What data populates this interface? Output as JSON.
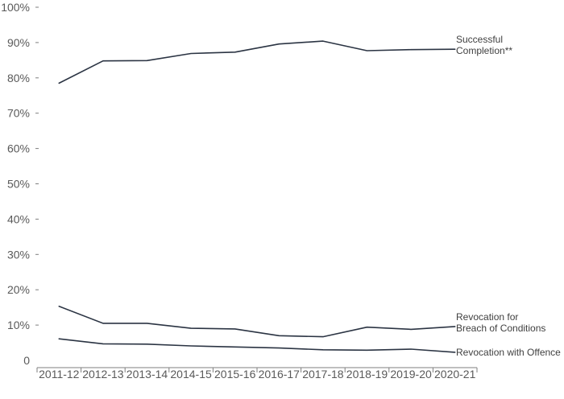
{
  "chart_data": {
    "type": "line",
    "title": "",
    "xlabel": "",
    "ylabel": "",
    "categories": [
      "2011-12",
      "2012-13",
      "2013-14",
      "2014-15",
      "2015-16",
      "2016-17",
      "2017-18",
      "2018-19",
      "2019-20",
      "2020-21"
    ],
    "ylim": [
      0,
      100
    ],
    "yticks": [
      {
        "value": 0,
        "label": "0"
      },
      {
        "value": 10,
        "label": "10%"
      },
      {
        "value": 20,
        "label": "20%"
      },
      {
        "value": 30,
        "label": "30%"
      },
      {
        "value": 40,
        "label": "40%"
      },
      {
        "value": 50,
        "label": "50%"
      },
      {
        "value": 60,
        "label": "60%"
      },
      {
        "value": 70,
        "label": "70%"
      },
      {
        "value": 80,
        "label": "80%"
      },
      {
        "value": 90,
        "label": "90%"
      },
      {
        "value": 100,
        "label": "100%"
      }
    ],
    "grid": false,
    "legend": "direct labels at right end of lines",
    "series": [
      {
        "name": "Successful Completion**",
        "label_lines": [
          "Successful",
          "Completion**"
        ],
        "color": "#2b3443",
        "values": [
          78.5,
          84.8,
          84.9,
          86.9,
          87.3,
          89.6,
          90.4,
          87.7,
          88.0,
          88.1
        ]
      },
      {
        "name": "Revocation for Breach of Conditions",
        "label_lines": [
          "Revocation for",
          "Breach of Conditions"
        ],
        "color": "#2b3443",
        "values": [
          15.3,
          10.5,
          10.5,
          9.1,
          8.9,
          7.0,
          6.7,
          9.4,
          8.8,
          9.6
        ]
      },
      {
        "name": "Revocation with Offence",
        "label_lines": [
          "Revocation with Offence"
        ],
        "color": "#2b3443",
        "values": [
          6.1,
          4.7,
          4.6,
          4.1,
          3.8,
          3.5,
          3.0,
          2.9,
          3.2,
          2.3
        ]
      }
    ]
  }
}
